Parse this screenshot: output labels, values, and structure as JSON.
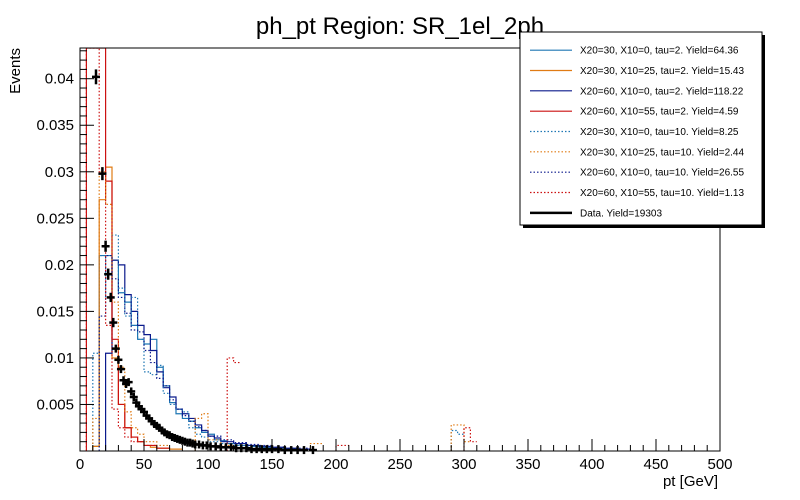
{
  "chart_data": {
    "type": "histogram",
    "title": "ph_pt Region: SR_1el_2ph",
    "xlabel": "pt [GeV]",
    "ylabel": "Events",
    "xlim": [
      0,
      500
    ],
    "ylim": [
      0,
      0.0433
    ],
    "xticks": [
      0,
      50,
      100,
      150,
      200,
      250,
      300,
      350,
      400,
      450,
      500
    ],
    "xtick_labels": [
      "0",
      "50",
      "100",
      "150",
      "200",
      "250",
      "300",
      "350",
      "400",
      "450",
      "500"
    ],
    "yticks": [
      0.005,
      0.01,
      0.015,
      0.02,
      0.025,
      0.03,
      0.035,
      0.04
    ],
    "ytick_labels": [
      "0.005",
      "0.01",
      "0.015",
      "0.02",
      "0.025",
      "0.03",
      "0.035",
      "0.04"
    ],
    "bin_width": 5,
    "legend_position": "top-right",
    "series": [
      {
        "name": "X20=30, X10=0, tau=2. Yield=64.36",
        "color": "#1f77b4",
        "style": "solid",
        "bins": [
          [
            10,
            15,
            0.0005
          ],
          [
            15,
            20,
            0.021
          ],
          [
            20,
            25,
            0.021
          ],
          [
            25,
            30,
            0.0205
          ],
          [
            30,
            35,
            0.017
          ],
          [
            35,
            40,
            0.016
          ],
          [
            40,
            45,
            0.0135
          ],
          [
            45,
            50,
            0.012
          ],
          [
            50,
            55,
            0.0115
          ],
          [
            55,
            60,
            0.012
          ],
          [
            60,
            65,
            0.009
          ],
          [
            65,
            70,
            0.007
          ],
          [
            70,
            75,
            0.0052
          ],
          [
            75,
            80,
            0.004
          ],
          [
            80,
            85,
            0.0035
          ],
          [
            85,
            90,
            0.0032
          ],
          [
            90,
            95,
            0.0025
          ],
          [
            95,
            100,
            0.002
          ],
          [
            100,
            105,
            0.0018
          ],
          [
            105,
            110,
            0.0012
          ],
          [
            110,
            115,
            0.0011
          ],
          [
            115,
            120,
            0.0008
          ],
          [
            120,
            125,
            0.0008
          ],
          [
            125,
            130,
            0.0006
          ],
          [
            130,
            135,
            0.0006
          ],
          [
            135,
            140,
            0.0005
          ],
          [
            140,
            145,
            0.0004
          ],
          [
            145,
            150,
            0.0004
          ],
          [
            150,
            160,
            0.0003
          ],
          [
            160,
            170,
            0.0002
          ],
          [
            170,
            180,
            0.0002
          ]
        ]
      },
      {
        "name": "X20=30, X10=25, tau=2. Yield=15.43",
        "color": "#e07b14",
        "style": "solid",
        "bins": [
          [
            10,
            15,
            0.0005
          ],
          [
            15,
            20,
            0.027
          ],
          [
            20,
            25,
            0.0305
          ],
          [
            25,
            30,
            0.01
          ],
          [
            30,
            35,
            0.005
          ],
          [
            35,
            40,
            0.0025
          ],
          [
            40,
            45,
            0.0015
          ],
          [
            45,
            50,
            0.001
          ],
          [
            50,
            55,
            0.0006
          ],
          [
            55,
            60,
            0.0004
          ],
          [
            60,
            70,
            0.0003
          ],
          [
            70,
            80,
            0.0002
          ]
        ]
      },
      {
        "name": "X20=60, X10=0, tau=2. Yield=118.22",
        "color": "#0b1a8c",
        "style": "solid",
        "bins": [
          [
            20,
            25,
            0.0105
          ],
          [
            25,
            30,
            0.0205
          ],
          [
            30,
            35,
            0.02
          ],
          [
            35,
            40,
            0.0168
          ],
          [
            40,
            45,
            0.015
          ],
          [
            45,
            50,
            0.0135
          ],
          [
            50,
            55,
            0.0125
          ],
          [
            55,
            60,
            0.0108
          ],
          [
            60,
            65,
            0.0085
          ],
          [
            65,
            70,
            0.0068
          ],
          [
            70,
            75,
            0.0058
          ],
          [
            75,
            80,
            0.0045
          ],
          [
            80,
            85,
            0.004
          ],
          [
            85,
            90,
            0.0035
          ],
          [
            90,
            95,
            0.0028
          ],
          [
            95,
            100,
            0.0022
          ],
          [
            100,
            105,
            0.0016
          ],
          [
            105,
            110,
            0.0014
          ],
          [
            110,
            120,
            0.001
          ],
          [
            120,
            130,
            0.0008
          ],
          [
            130,
            140,
            0.0006
          ],
          [
            140,
            150,
            0.0005
          ],
          [
            150,
            160,
            0.0004
          ],
          [
            160,
            170,
            0.0003
          ],
          [
            170,
            180,
            0.0002
          ]
        ]
      },
      {
        "name": "X20=60, X10=55, tau=2. Yield=4.59",
        "color": "#cc1111",
        "style": "solid",
        "bins": [
          [
            5,
            10,
            0.0433
          ],
          [
            10,
            15,
            0.0433
          ],
          [
            15,
            20,
            0.0433
          ],
          [
            20,
            25,
            0.029
          ],
          [
            25,
            30,
            0.012
          ],
          [
            30,
            35,
            0.005
          ],
          [
            35,
            40,
            0.0025
          ],
          [
            40,
            45,
            0.0015
          ],
          [
            45,
            50,
            0.001
          ],
          [
            50,
            60,
            0.0006
          ],
          [
            60,
            70,
            0.0003
          ]
        ]
      },
      {
        "name": "X20=30, X10=0, tau=10. Yield=8.25",
        "color": "#1f77b4",
        "style": "dotted",
        "bins": [
          [
            10,
            15,
            0.0105
          ],
          [
            15,
            20,
            0.021
          ],
          [
            20,
            25,
            0.0165
          ],
          [
            25,
            30,
            0.0232
          ],
          [
            30,
            35,
            0.0175
          ],
          [
            35,
            40,
            0.0145
          ],
          [
            40,
            45,
            0.0165
          ],
          [
            45,
            50,
            0.012
          ],
          [
            50,
            55,
            0.0085
          ],
          [
            55,
            60,
            0.0082
          ],
          [
            60,
            65,
            0.0092
          ],
          [
            65,
            70,
            0.0062
          ],
          [
            70,
            75,
            0.005
          ],
          [
            75,
            80,
            0.0045
          ],
          [
            80,
            85,
            0.0042
          ],
          [
            85,
            90,
            0.0025
          ],
          [
            90,
            95,
            0.0018
          ],
          [
            95,
            100,
            0.0015
          ],
          [
            100,
            110,
            0.001
          ],
          [
            110,
            120,
            0.0008
          ],
          [
            120,
            130,
            0.0006
          ],
          [
            130,
            140,
            0.0005
          ],
          [
            140,
            150,
            0.0004
          ],
          [
            290,
            295,
            0.0022
          ],
          [
            295,
            300,
            0.0018
          ]
        ]
      },
      {
        "name": "X20=30, X10=25, tau=10. Yield=2.44",
        "color": "#e07b14",
        "style": "dotted",
        "bins": [
          [
            10,
            15,
            0.0035
          ],
          [
            15,
            20,
            0.03
          ],
          [
            20,
            25,
            0.0265
          ],
          [
            25,
            30,
            0.016
          ],
          [
            30,
            35,
            0.009
          ],
          [
            35,
            40,
            0.0042
          ],
          [
            40,
            45,
            0.0025
          ],
          [
            45,
            50,
            0.0018
          ],
          [
            50,
            60,
            0.001
          ],
          [
            60,
            70,
            0.0006
          ],
          [
            90,
            95,
            0.0035
          ],
          [
            95,
            100,
            0.004
          ],
          [
            100,
            110,
            0.0012
          ],
          [
            110,
            120,
            0.0006
          ],
          [
            180,
            190,
            0.0008
          ],
          [
            290,
            300,
            0.0028
          ],
          [
            300,
            305,
            0.001
          ]
        ]
      },
      {
        "name": "X20=60, X10=0, tau=10. Yield=26.55",
        "color": "#0b1a8c",
        "style": "dotted",
        "bins": [
          [
            15,
            20,
            0.0145
          ],
          [
            20,
            25,
            0.021
          ],
          [
            25,
            30,
            0.0185
          ],
          [
            30,
            35,
            0.0165
          ],
          [
            35,
            40,
            0.0148
          ],
          [
            40,
            45,
            0.013
          ],
          [
            45,
            50,
            0.0128
          ],
          [
            50,
            55,
            0.0108
          ],
          [
            55,
            60,
            0.0095
          ],
          [
            60,
            65,
            0.0078
          ],
          [
            65,
            70,
            0.007
          ],
          [
            70,
            75,
            0.0055
          ],
          [
            75,
            80,
            0.0045
          ],
          [
            80,
            85,
            0.0038
          ],
          [
            85,
            90,
            0.0032
          ],
          [
            90,
            95,
            0.0026
          ],
          [
            95,
            100,
            0.0022
          ],
          [
            100,
            110,
            0.0016
          ],
          [
            110,
            120,
            0.0012
          ],
          [
            120,
            130,
            0.0009
          ],
          [
            130,
            140,
            0.0007
          ],
          [
            140,
            150,
            0.0006
          ],
          [
            150,
            160,
            0.0004
          ],
          [
            160,
            180,
            0.0003
          ]
        ]
      },
      {
        "name": "X20=60, X10=55, tau=10. Yield=1.13",
        "color": "#cc1111",
        "style": "dotted",
        "bins": [
          [
            5,
            10,
            0.0433
          ],
          [
            10,
            15,
            0.0433
          ],
          [
            15,
            20,
            0.03
          ],
          [
            20,
            25,
            0.0135
          ],
          [
            25,
            30,
            0.0045
          ],
          [
            30,
            35,
            0.0025
          ],
          [
            35,
            40,
            0.0015
          ],
          [
            40,
            50,
            0.001
          ],
          [
            50,
            60,
            0.0006
          ],
          [
            115,
            120,
            0.01
          ],
          [
            120,
            125,
            0.0095
          ],
          [
            200,
            210,
            0.0006
          ],
          [
            300,
            305,
            0.0025
          ],
          [
            305,
            310,
            0.001
          ]
        ]
      }
    ],
    "data_series": {
      "name": "Data. Yield=19303",
      "color": "#000000",
      "points": [
        [
          12.5,
          0.0402,
          0.0008
        ],
        [
          17.5,
          0.0298,
          0.0007
        ],
        [
          20,
          0.022,
          0.0006
        ],
        [
          22,
          0.019,
          0.0006
        ],
        [
          24,
          0.0165,
          0.0005
        ],
        [
          26,
          0.0138,
          0.0005
        ],
        [
          28,
          0.011,
          0.0004
        ],
        [
          30,
          0.0098,
          0.0004
        ],
        [
          32,
          0.0088,
          0.0004
        ],
        [
          34,
          0.0076,
          0.0003
        ],
        [
          36,
          0.0072,
          0.0003
        ],
        [
          38,
          0.0074,
          0.0003
        ],
        [
          40,
          0.0064,
          0.0003
        ],
        [
          42,
          0.0058,
          0.0003
        ],
        [
          44,
          0.0052,
          0.0003
        ],
        [
          46,
          0.0048,
          0.0003
        ],
        [
          48,
          0.0045,
          0.0003
        ],
        [
          50,
          0.0042,
          0.0002
        ],
        [
          52,
          0.0038,
          0.0002
        ],
        [
          54,
          0.0035,
          0.0002
        ],
        [
          56,
          0.0032,
          0.0002
        ],
        [
          58,
          0.0029,
          0.0002
        ],
        [
          60,
          0.0027,
          0.0002
        ],
        [
          62,
          0.0025,
          0.0002
        ],
        [
          64,
          0.0022,
          0.0002
        ],
        [
          66,
          0.002,
          0.0002
        ],
        [
          68,
          0.0018,
          0.0002
        ],
        [
          70,
          0.0017,
          0.0002
        ],
        [
          72,
          0.0015,
          0.0001
        ],
        [
          74,
          0.0014,
          0.0001
        ],
        [
          76,
          0.0013,
          0.0001
        ],
        [
          78,
          0.0012,
          0.0001
        ],
        [
          80,
          0.0011,
          0.0001
        ],
        [
          82,
          0.001,
          0.0001
        ],
        [
          84,
          0.0009,
          0.0001
        ],
        [
          86,
          0.0009,
          0.0001
        ],
        [
          88,
          0.0008,
          0.0001
        ],
        [
          90,
          0.0007,
          0.0001
        ],
        [
          93,
          0.0007,
          0.0001
        ],
        [
          96,
          0.0006,
          0.0001
        ],
        [
          99,
          0.0006,
          0.0001
        ],
        [
          102,
          0.0005,
          0.0001
        ],
        [
          106,
          0.0005,
          0.0001
        ],
        [
          110,
          0.0004,
          0.0001
        ],
        [
          114,
          0.0004,
          0.0001
        ],
        [
          118,
          0.0004,
          0.0001
        ],
        [
          122,
          0.0003,
          0.0001
        ],
        [
          126,
          0.0003,
          0.0001
        ],
        [
          130,
          0.0003,
          0.0001
        ],
        [
          134,
          0.0002,
          0.0001
        ],
        [
          138,
          0.0002,
          0.0001
        ],
        [
          142,
          0.0002,
          0.0001
        ],
        [
          146,
          0.0002,
          0.0001
        ],
        [
          150,
          0.0002,
          0.0001
        ],
        [
          155,
          0.0002,
          0.0001
        ],
        [
          160,
          0.0001,
          0.0001
        ],
        [
          165,
          0.0001,
          0.0001
        ],
        [
          170,
          0.0001,
          0.0001
        ],
        [
          175,
          0.0001,
          0.0001
        ],
        [
          182,
          0.0001,
          0.0001
        ]
      ]
    }
  }
}
